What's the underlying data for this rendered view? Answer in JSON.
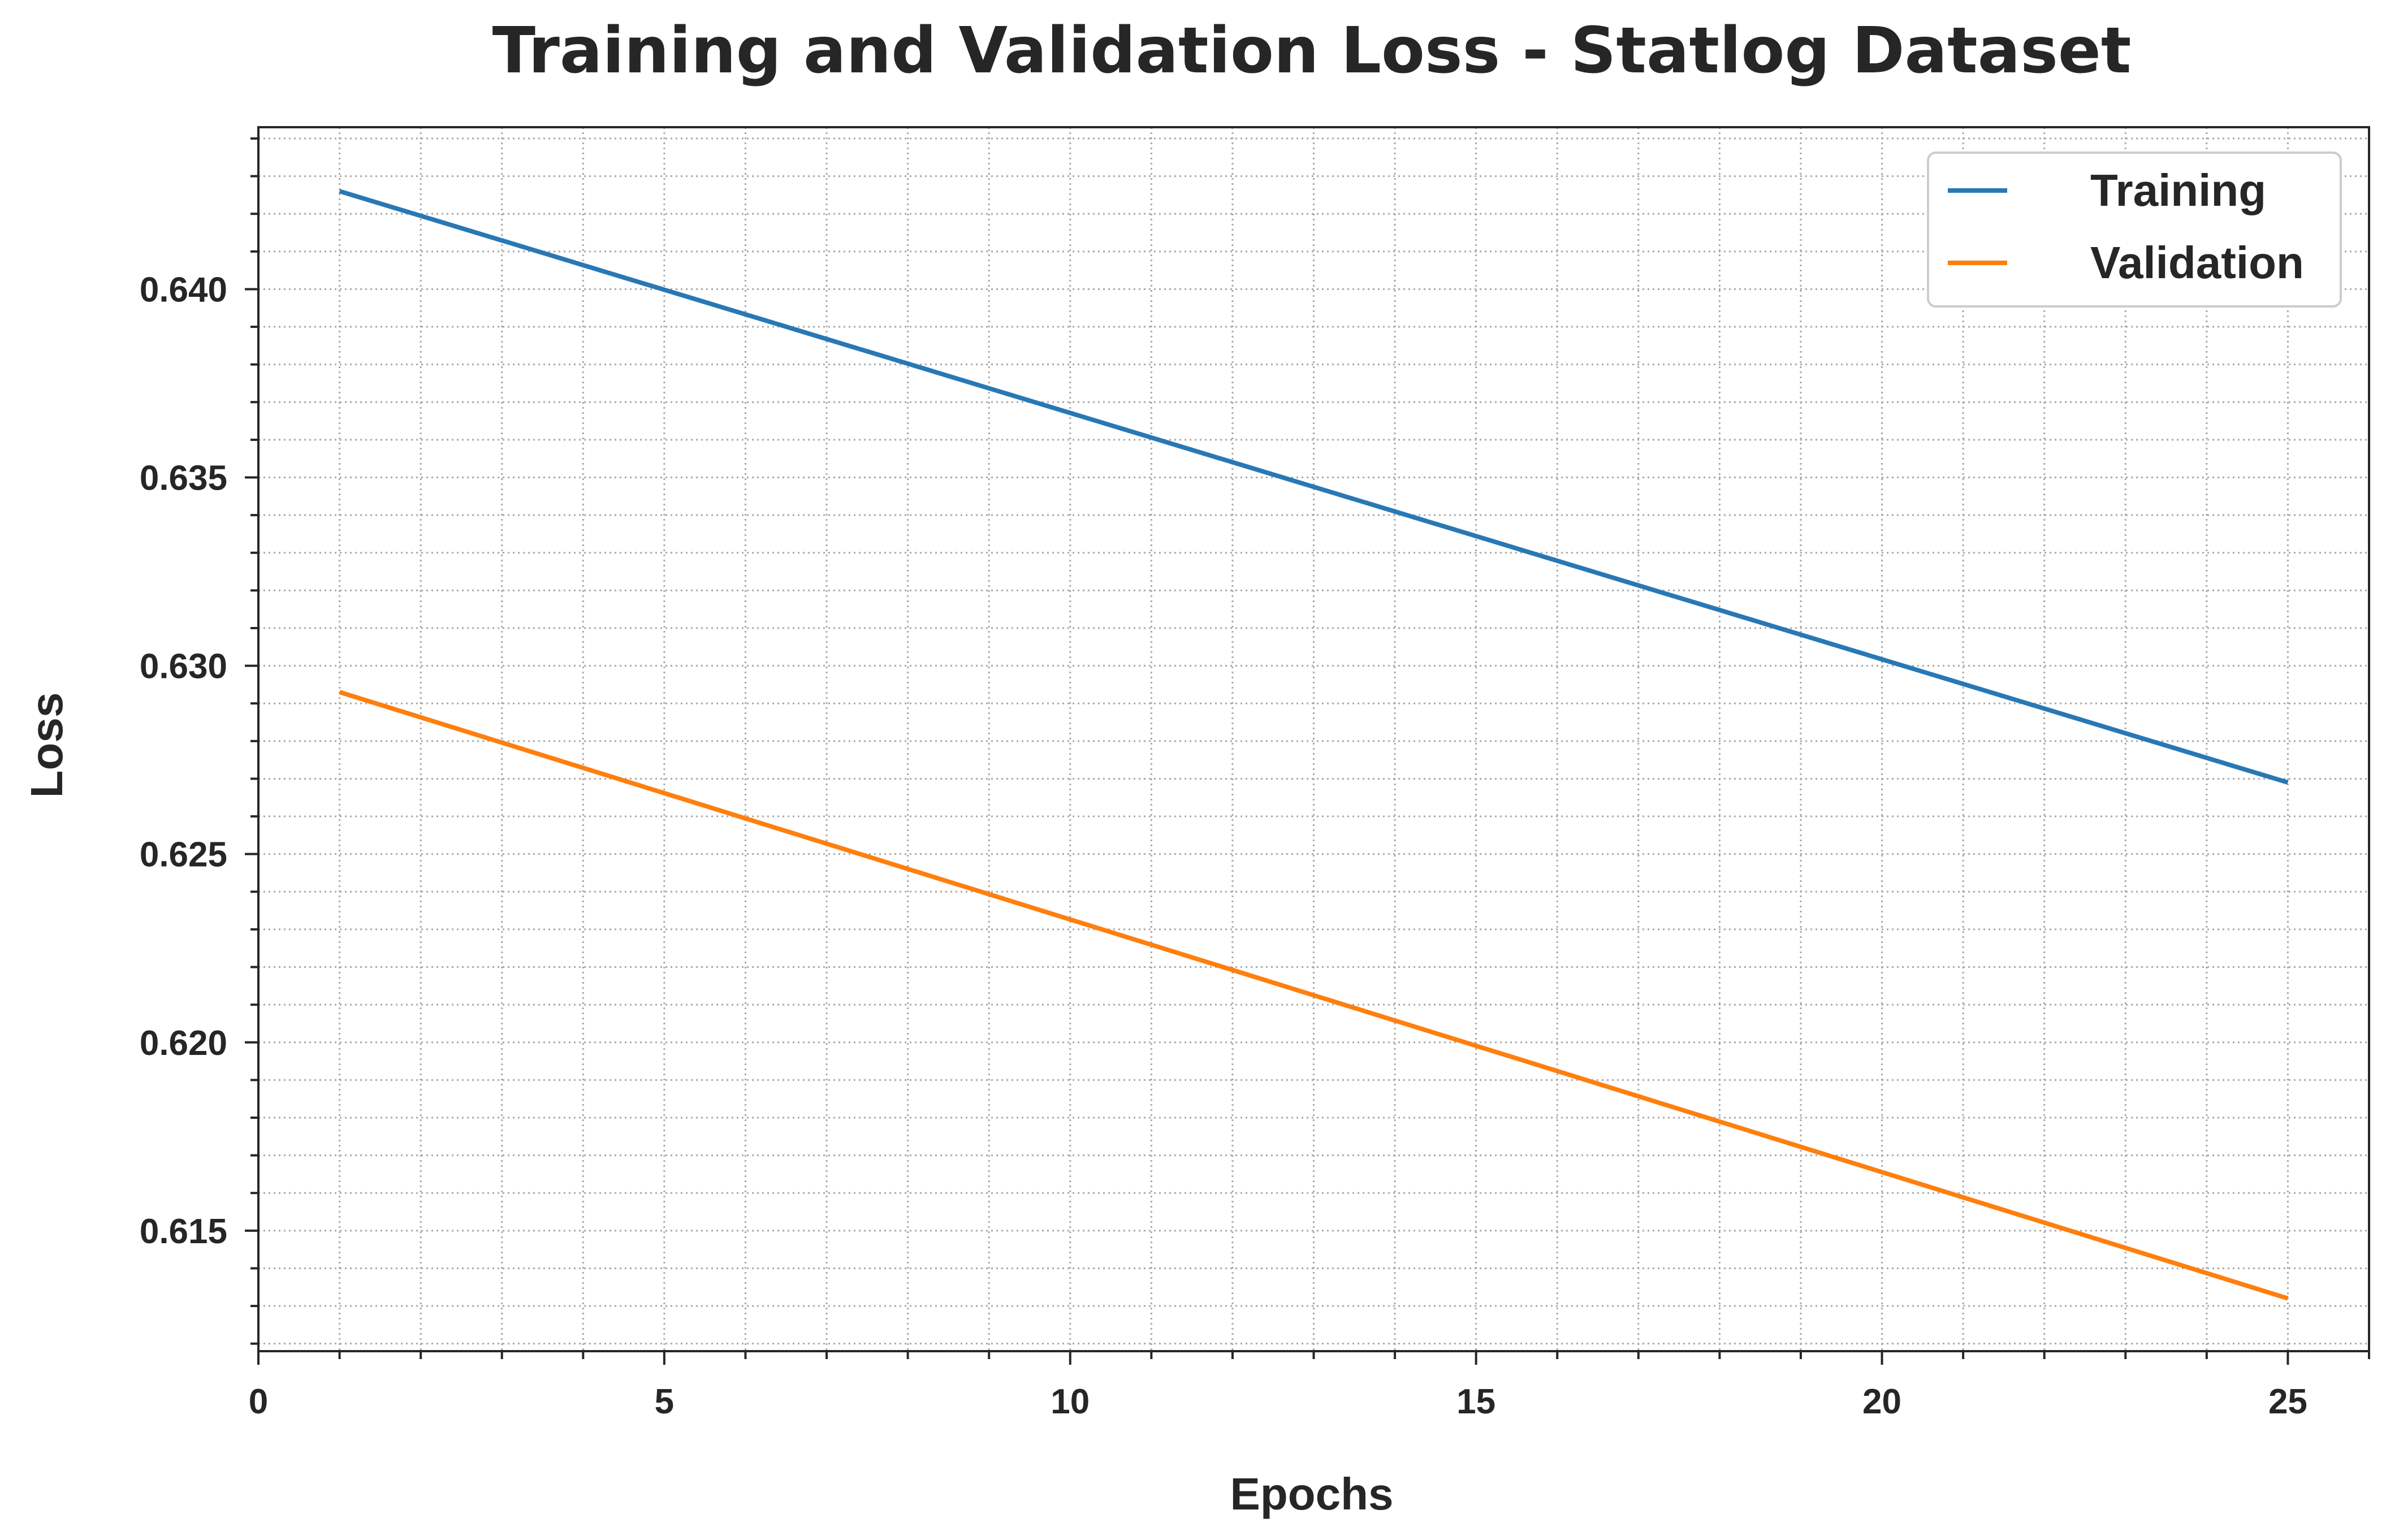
{
  "chart_data": {
    "type": "line",
    "title": "Training and Validation Loss - Statlog Dataset",
    "xlabel": "Epochs",
    "ylabel": "Loss",
    "xlim": [
      0,
      26
    ],
    "ylim": [
      0.6118,
      0.6443
    ],
    "xticks": [
      0,
      5,
      10,
      15,
      20,
      25
    ],
    "xtick_labels": [
      "0",
      "5",
      "10",
      "15",
      "20",
      "25"
    ],
    "yticks": [
      0.615,
      0.62,
      0.625,
      0.63,
      0.635,
      0.64
    ],
    "ytick_labels": [
      "0.615",
      "0.620",
      "0.625",
      "0.630",
      "0.635",
      "0.640"
    ],
    "x_minor_step": 1,
    "y_minor_step": 0.001,
    "grid": true,
    "legend_position": "top-right",
    "x": [
      1,
      25
    ],
    "series": [
      {
        "name": "Training",
        "color": "#2878b5",
        "values": [
          0.6426,
          0.6269
        ]
      },
      {
        "name": "Validation",
        "color": "#ff7f0e",
        "values": [
          0.6293,
          0.6132
        ]
      }
    ]
  }
}
